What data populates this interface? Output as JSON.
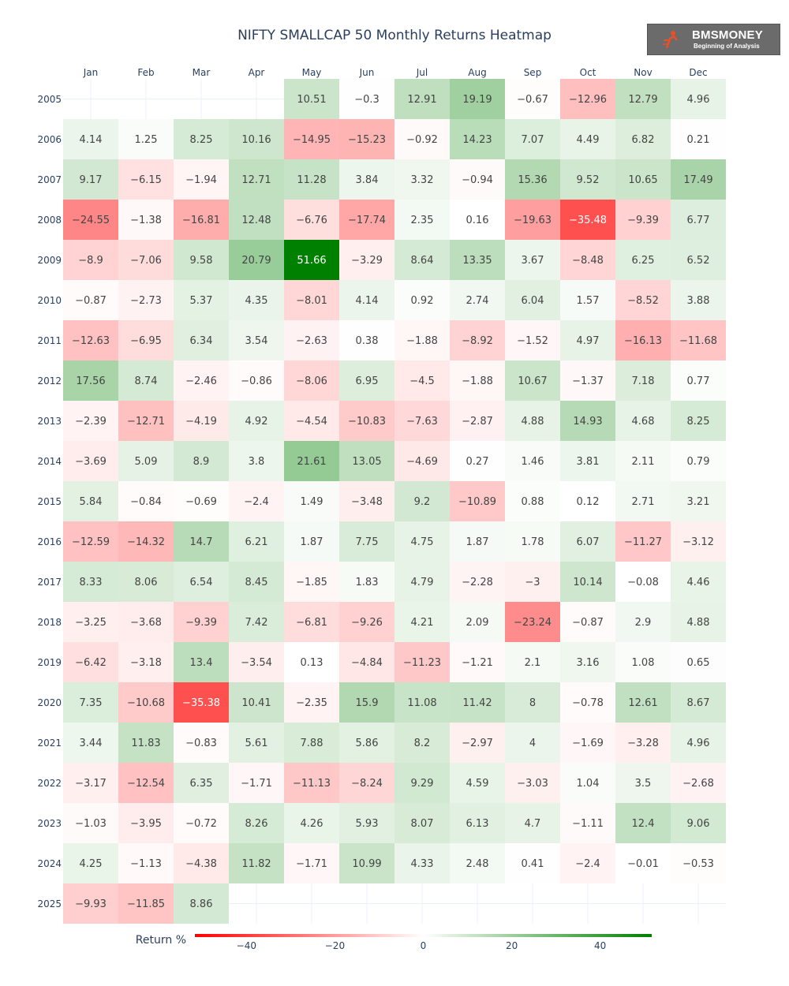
{
  "brand": {
    "name": "BMSMONEY",
    "tagline": "Beginning of Analysis"
  },
  "chart_data": {
    "type": "heatmap",
    "title": "NIFTY SMALLCAP 50 Monthly Returns Heatmap",
    "columns": [
      "Jan",
      "Feb",
      "Mar",
      "Apr",
      "May",
      "Jun",
      "Jul",
      "Aug",
      "Sep",
      "Oct",
      "Nov",
      "Dec"
    ],
    "rows": [
      "2005",
      "2006",
      "2007",
      "2008",
      "2009",
      "2010",
      "2011",
      "2012",
      "2013",
      "2014",
      "2015",
      "2016",
      "2017",
      "2018",
      "2019",
      "2020",
      "2021",
      "2022",
      "2023",
      "2024",
      "2025"
    ],
    "values": [
      [
        null,
        null,
        null,
        null,
        10.51,
        -0.3,
        12.91,
        19.19,
        -0.67,
        -12.96,
        12.79,
        4.96
      ],
      [
        4.14,
        1.25,
        8.25,
        10.16,
        -14.95,
        -15.23,
        -0.92,
        14.23,
        7.07,
        4.49,
        6.82,
        0.21
      ],
      [
        9.17,
        -6.15,
        -1.94,
        12.71,
        11.28,
        3.84,
        3.32,
        -0.94,
        15.36,
        9.52,
        10.65,
        17.49
      ],
      [
        -24.55,
        -1.38,
        -16.81,
        12.48,
        -6.76,
        -17.74,
        2.35,
        0.16,
        -19.63,
        -35.48,
        -9.39,
        6.77
      ],
      [
        -8.9,
        -7.06,
        9.58,
        20.79,
        51.66,
        -3.29,
        8.64,
        13.35,
        3.67,
        -8.48,
        6.25,
        6.52
      ],
      [
        -0.87,
        -2.73,
        5.37,
        4.35,
        -8.01,
        4.14,
        0.92,
        2.74,
        6.04,
        1.57,
        -8.52,
        3.88
      ],
      [
        -12.63,
        -6.95,
        6.34,
        3.54,
        -2.63,
        0.38,
        -1.88,
        -8.92,
        -1.52,
        4.97,
        -16.13,
        -11.68
      ],
      [
        17.56,
        8.74,
        -2.46,
        -0.86,
        -8.06,
        6.95,
        -4.5,
        -1.88,
        10.67,
        -1.37,
        7.18,
        0.77
      ],
      [
        -2.39,
        -12.71,
        -4.19,
        4.92,
        -4.54,
        -10.83,
        -7.63,
        -2.87,
        4.88,
        14.93,
        4.68,
        8.25
      ],
      [
        -3.69,
        5.09,
        8.9,
        3.8,
        21.61,
        13.05,
        -4.69,
        0.27,
        1.46,
        3.81,
        2.11,
        0.79
      ],
      [
        5.84,
        -0.84,
        -0.69,
        -2.4,
        1.49,
        -3.48,
        9.2,
        -10.89,
        0.88,
        0.12,
        2.71,
        3.21
      ],
      [
        -12.59,
        -14.32,
        14.7,
        6.21,
        1.87,
        7.75,
        4.75,
        1.87,
        1.78,
        6.07,
        -11.27,
        -3.12
      ],
      [
        8.33,
        8.06,
        6.54,
        8.45,
        -1.85,
        1.83,
        4.79,
        -2.28,
        -3,
        10.14,
        -0.08,
        4.46
      ],
      [
        -3.25,
        -3.68,
        -9.39,
        7.42,
        -6.81,
        -9.26,
        4.21,
        2.09,
        -23.24,
        -0.87,
        2.9,
        4.88
      ],
      [
        -6.42,
        -3.18,
        13.4,
        -3.54,
        0.13,
        -4.84,
        -11.23,
        -1.21,
        2.1,
        3.16,
        1.08,
        0.65
      ],
      [
        7.35,
        -10.68,
        -35.38,
        10.41,
        -2.35,
        15.9,
        11.08,
        11.42,
        8,
        -0.78,
        12.61,
        8.67
      ],
      [
        3.44,
        11.83,
        -0.83,
        5.61,
        7.88,
        5.86,
        8.2,
        -2.97,
        4,
        -1.69,
        -3.28,
        4.96
      ],
      [
        -3.17,
        -12.54,
        6.35,
        -1.71,
        -11.13,
        -8.24,
        9.29,
        4.59,
        -3.03,
        1.04,
        3.5,
        -2.68
      ],
      [
        -1.03,
        -3.95,
        -0.72,
        8.26,
        4.26,
        5.93,
        8.07,
        6.13,
        4.7,
        -1.11,
        12.4,
        9.06
      ],
      [
        4.25,
        -1.13,
        -4.38,
        11.82,
        -1.71,
        10.99,
        4.33,
        2.48,
        0.41,
        -2.4,
        -0.01,
        -0.53
      ],
      [
        -9.93,
        -11.85,
        8.86,
        null,
        null,
        null,
        null,
        null,
        null,
        null,
        null,
        null
      ]
    ],
    "colorscale": {
      "title": "Return %",
      "min": -51.66,
      "max": 51.66,
      "low_color": "#ff0000",
      "mid_color": "#ffffff",
      "high_color": "#008000",
      "ticks": [
        -40,
        -20,
        0,
        20,
        40
      ],
      "orientation": "horizontal",
      "position": "bottom"
    },
    "cell_text_color": "#444444",
    "extreme_text_color": "#ffffff",
    "grid": true
  }
}
